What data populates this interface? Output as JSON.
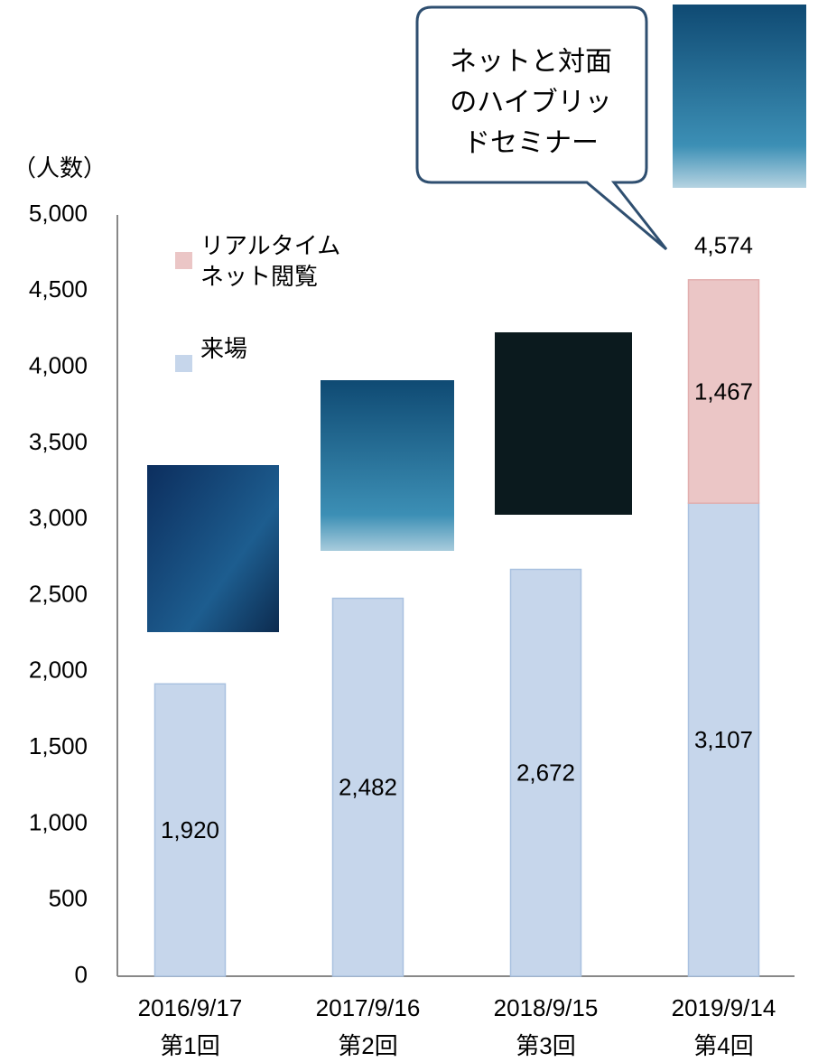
{
  "chart_data": {
    "type": "bar",
    "stacked": true,
    "y_axis_label": "（人数）",
    "categories": [
      [
        "2016/9/17",
        "第1回"
      ],
      [
        "2017/9/16",
        "第2回"
      ],
      [
        "2018/9/15",
        "第3回"
      ],
      [
        "2019/9/14",
        "第4回"
      ]
    ],
    "series": [
      {
        "name": "来場",
        "color": "#c6d6eb",
        "values": [
          1920,
          2482,
          2672,
          3107
        ],
        "value_labels": [
          "1,920",
          "2,482",
          "2,672",
          "3,107"
        ]
      },
      {
        "name": "リアルタイム\nネット閲覧",
        "color": "#ebc6c6",
        "values": [
          null,
          null,
          null,
          1467
        ],
        "value_labels": [
          null,
          null,
          null,
          "1,467"
        ]
      }
    ],
    "totals": [
      null,
      null,
      null,
      4574
    ],
    "total_labels": [
      null,
      null,
      null,
      "4,574"
    ],
    "ylim": [
      0,
      5000
    ],
    "yticks": [
      0,
      500,
      {
        "value": 1000,
        "label": "1,000"
      },
      {
        "value": 1500,
        "label": "1,500"
      },
      {
        "value": 2000,
        "label": "2,000"
      },
      {
        "value": 2500,
        "label": "2,500"
      },
      {
        "value": 3000,
        "label": "3,000"
      },
      {
        "value": 3500,
        "label": "3,500"
      },
      {
        "value": 4000,
        "label": "4,000"
      },
      {
        "value": 4500,
        "label": "4,500"
      },
      {
        "value": 5000,
        "label": "5,000"
      }
    ],
    "grid": false,
    "annotation": "ネットと対面\nのハイブリッ\nドセミナー"
  }
}
